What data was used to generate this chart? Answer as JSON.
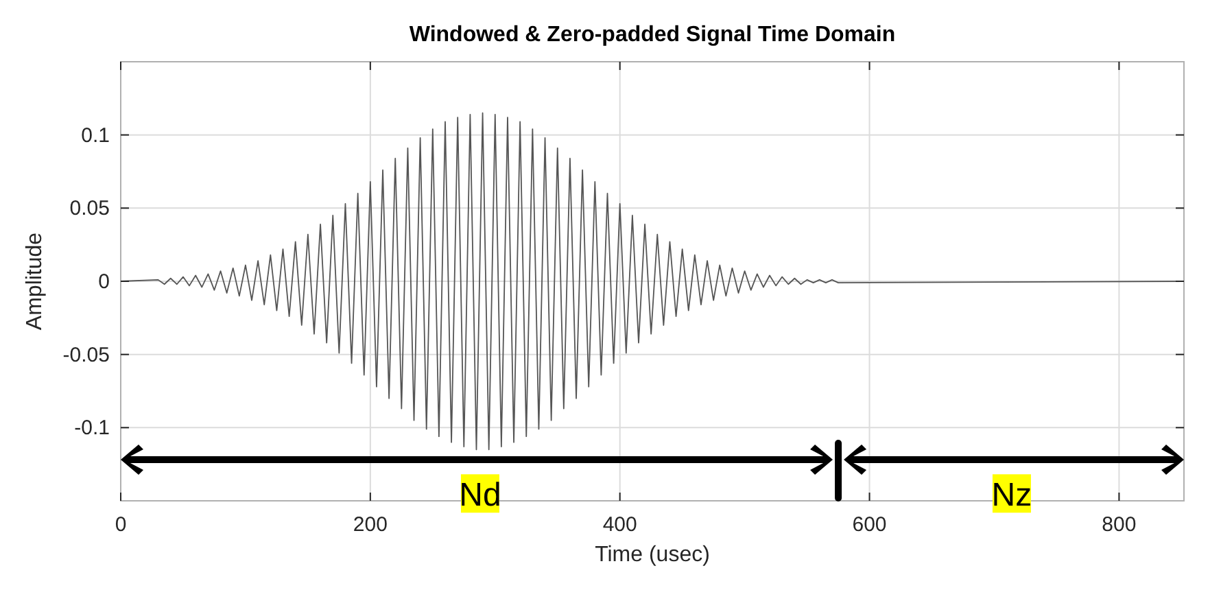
{
  "chart_data": {
    "type": "line",
    "title": "Windowed & Zero-padded Signal Time Domain",
    "xlabel": "Time (usec)",
    "ylabel": "Amplitude",
    "xlim": [
      0,
      852
    ],
    "xticks": [
      0,
      200,
      400,
      600,
      800
    ],
    "ylim": [
      -0.15,
      0.15
    ],
    "yticks": [
      -0.1,
      -0.05,
      0,
      0.05,
      0.1
    ],
    "grid": true,
    "annotations": [
      {
        "text": "Nd",
        "x": 288,
        "y": -0.145
      },
      {
        "text": "Nz",
        "x": 714,
        "y": -0.145
      }
    ],
    "series": [
      {
        "color": "#555555",
        "x": [
          0,
          30,
          35,
          40,
          45,
          50,
          55,
          60,
          65,
          70,
          75,
          80,
          85,
          90,
          95,
          100,
          105,
          110,
          115,
          120,
          125,
          130,
          135,
          140,
          145,
          150,
          155,
          160,
          165,
          170,
          175,
          180,
          185,
          190,
          195,
          200,
          205,
          210,
          215,
          220,
          225,
          230,
          235,
          240,
          245,
          250,
          255,
          260,
          265,
          270,
          275,
          280,
          285,
          290,
          295,
          300,
          305,
          310,
          315,
          320,
          325,
          330,
          335,
          340,
          345,
          350,
          355,
          360,
          365,
          370,
          375,
          380,
          385,
          390,
          395,
          400,
          405,
          410,
          415,
          420,
          425,
          430,
          435,
          440,
          445,
          450,
          455,
          460,
          465,
          470,
          475,
          480,
          485,
          490,
          495,
          500,
          505,
          510,
          515,
          520,
          525,
          530,
          535,
          540,
          545,
          550,
          555,
          560,
          565,
          570,
          575,
          852
        ],
        "values": [
          0,
          0.001,
          -0.002,
          0.002,
          -0.002,
          0.003,
          -0.003,
          0.004,
          -0.004,
          0.005,
          -0.006,
          0.007,
          -0.008,
          0.009,
          -0.01,
          0.011,
          -0.013,
          0.014,
          -0.016,
          0.018,
          -0.02,
          0.022,
          -0.024,
          0.027,
          -0.03,
          0.032,
          -0.036,
          0.039,
          -0.042,
          0.045,
          -0.049,
          0.053,
          -0.056,
          0.06,
          -0.064,
          0.068,
          -0.072,
          0.076,
          -0.08,
          0.084,
          -0.087,
          0.091,
          -0.095,
          0.098,
          -0.101,
          0.104,
          -0.106,
          0.109,
          -0.11,
          0.112,
          -0.113,
          0.114,
          -0.115,
          0.115,
          -0.115,
          0.114,
          -0.113,
          0.112,
          -0.11,
          0.109,
          -0.106,
          0.104,
          -0.101,
          0.098,
          -0.095,
          0.091,
          -0.087,
          0.084,
          -0.08,
          0.076,
          -0.072,
          0.068,
          -0.064,
          0.06,
          -0.056,
          0.053,
          -0.049,
          0.045,
          -0.042,
          0.039,
          -0.036,
          0.032,
          -0.03,
          0.027,
          -0.024,
          0.022,
          -0.02,
          0.018,
          -0.016,
          0.014,
          -0.013,
          0.011,
          -0.01,
          0.009,
          -0.008,
          0.007,
          -0.006,
          0.005,
          -0.004,
          0.004,
          -0.003,
          0.003,
          -0.002,
          0.002,
          -0.002,
          0.001,
          -0.001,
          0.001,
          -0.001,
          0.001,
          -0.001,
          0
        ]
      }
    ]
  }
}
